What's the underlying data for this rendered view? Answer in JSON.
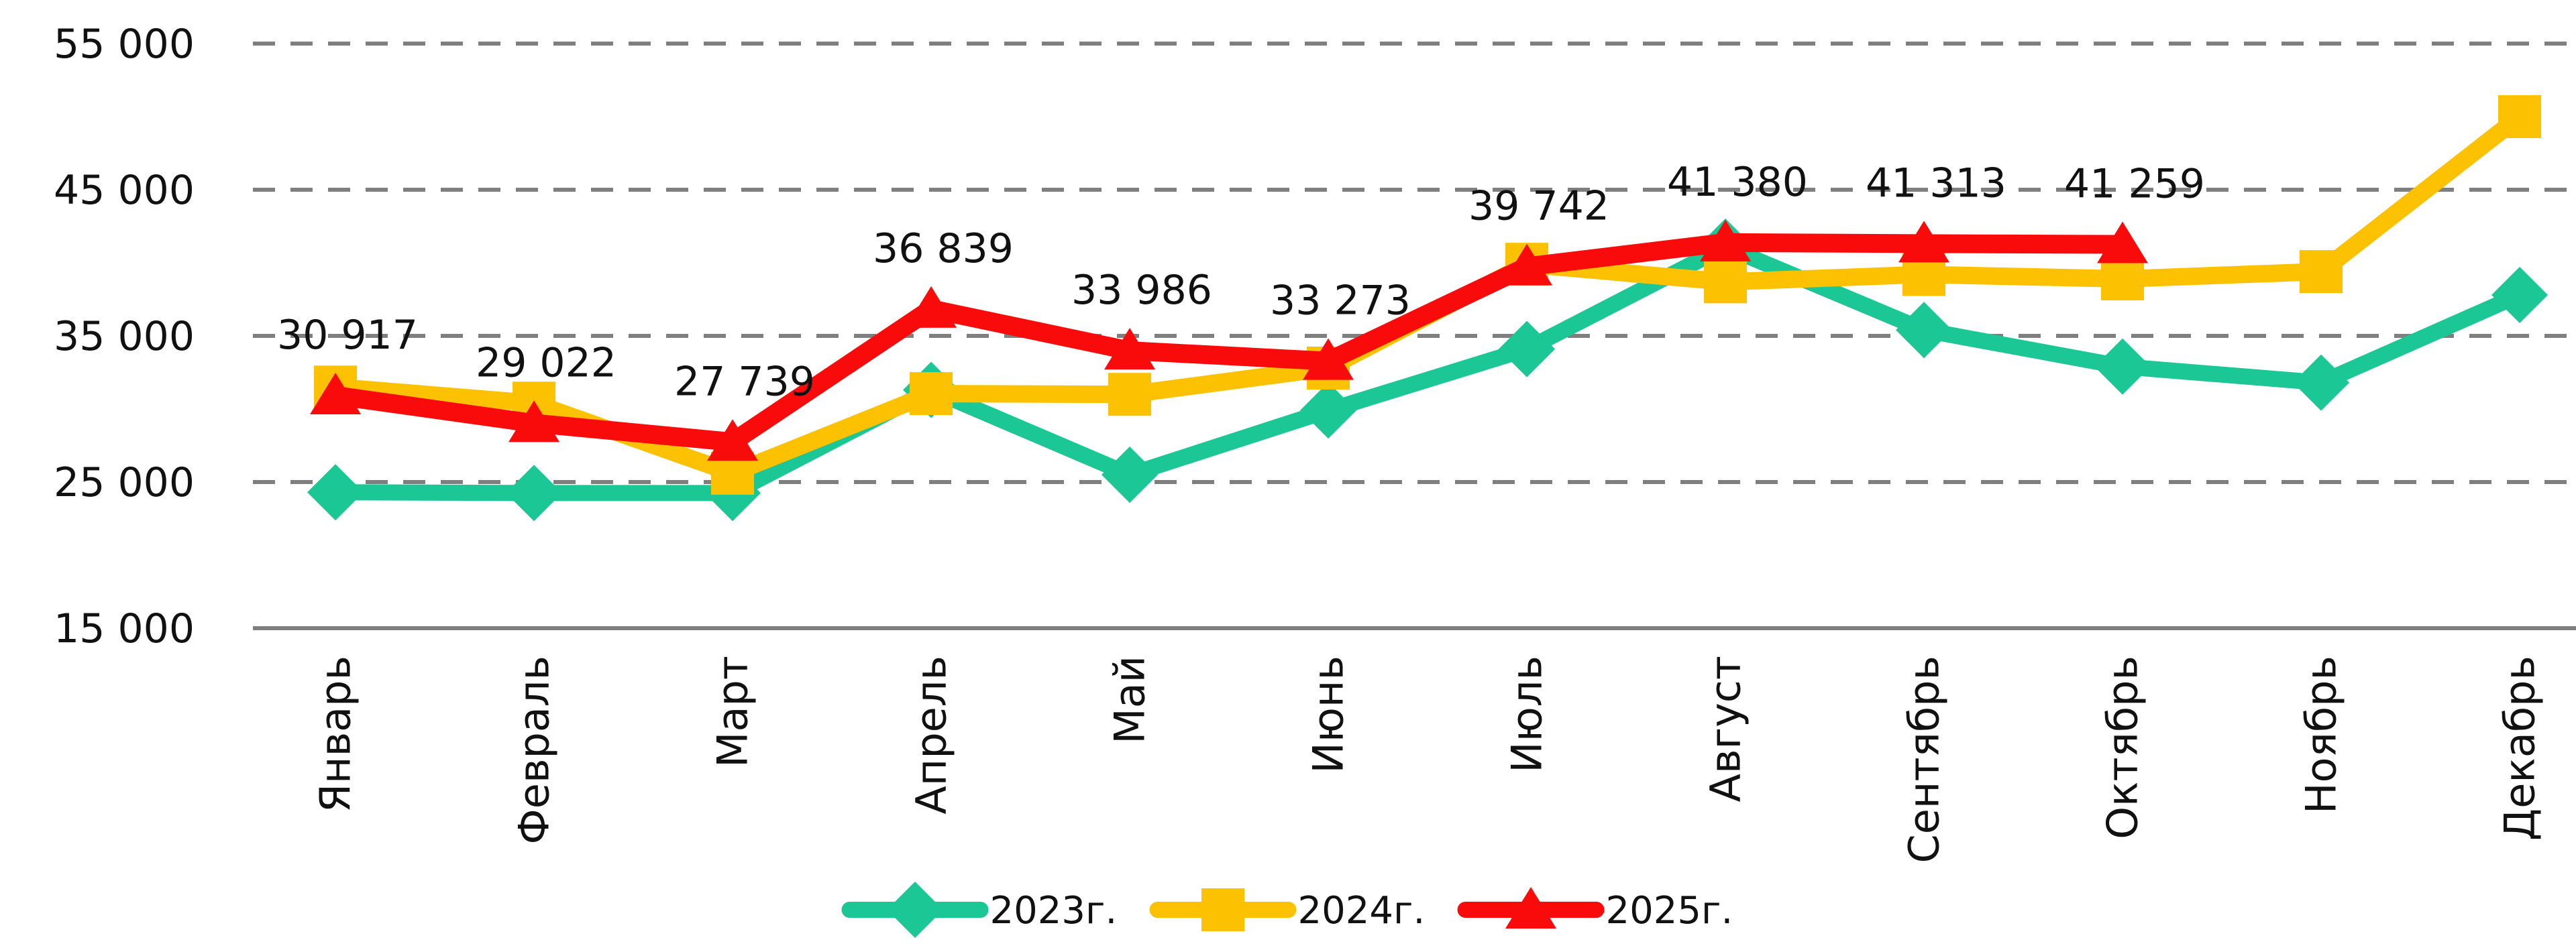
{
  "chart_data": {
    "type": "line",
    "title": "",
    "categories": [
      "Январь",
      "Февраль",
      "Март",
      "Апрель",
      "Май",
      "Июнь",
      "Июль",
      "Август",
      "Сентябрь",
      "Октябрь",
      "Ноябрь",
      "Декабрь"
    ],
    "series": [
      {
        "name": "2023г.",
        "color": "#1BC795",
        "marker": "diamond",
        "line_width": 24,
        "values": [
          24300,
          24250,
          24250,
          31300,
          25500,
          29900,
          34100,
          41100,
          35400,
          32900,
          31800,
          37800
        ],
        "data_labels": null
      },
      {
        "name": "2024г.",
        "color": "#FCC101",
        "marker": "square",
        "line_width": 26,
        "values": [
          31500,
          30400,
          25600,
          31050,
          31000,
          32800,
          39900,
          38700,
          39200,
          38900,
          39400,
          50000
        ],
        "data_labels": null
      },
      {
        "name": "2025г.",
        "color": "#F90B0B",
        "marker": "triangle",
        "line_width": 28,
        "values": [
          30917,
          29022,
          27739,
          36839,
          33986,
          33273,
          39742,
          41380,
          41313,
          41259,
          null,
          null
        ],
        "data_labels": [
          "30 917",
          "29 022",
          "27 739",
          "36 839",
          "33 986",
          "33 273",
          "39 742",
          "41 380",
          "41 313",
          "41 259",
          null,
          null
        ]
      }
    ],
    "y_axis": {
      "min": 15000,
      "max": 55000,
      "step": 10000,
      "tick_labels": [
        "15 000",
        "25 000",
        "35 000",
        "45 000",
        "55 000"
      ]
    },
    "x_axis": {
      "label_rotation_deg": -90
    },
    "grid": {
      "horizontal": "dashed",
      "color": "#7F7F7F"
    },
    "axis_color": "#7F7F7F",
    "text_color": "#111111",
    "legend_position": "bottom"
  }
}
